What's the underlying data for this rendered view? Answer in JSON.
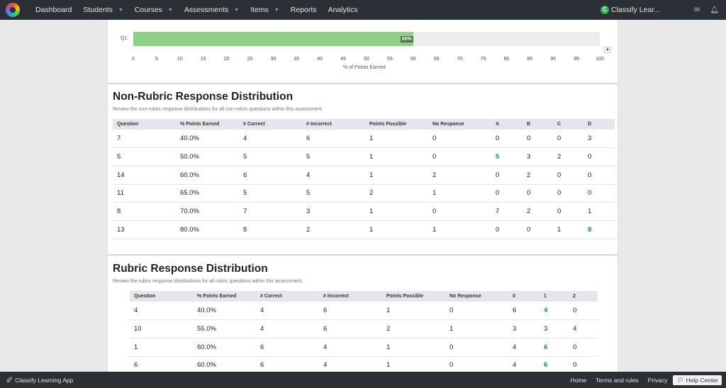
{
  "nav": {
    "items": [
      {
        "label": "Dashboard",
        "dropdown": false
      },
      {
        "label": "Students",
        "dropdown": true
      },
      {
        "label": "Courses",
        "dropdown": true
      },
      {
        "label": "Assessments",
        "dropdown": true
      },
      {
        "label": "Items",
        "dropdown": true
      },
      {
        "label": "Reports",
        "dropdown": false
      },
      {
        "label": "Analytics",
        "dropdown": false
      }
    ],
    "user_initial": "C",
    "user_name": "Classify Lear...",
    "icons": [
      "mail-icon",
      "bell-icon"
    ]
  },
  "chart_data": {
    "type": "bar",
    "orientation": "horizontal",
    "categories": [
      "Q1"
    ],
    "values": [
      60
    ],
    "data_labels": [
      "60%"
    ],
    "xlabel": "% of Points Earned",
    "xlim": [
      0,
      100
    ],
    "x_ticks": [
      "0",
      "5",
      "10",
      "15",
      "20",
      "25",
      "30",
      "35",
      "40",
      "45",
      "50",
      "55",
      "60",
      "65",
      "70",
      "75",
      "80",
      "85",
      "90",
      "95",
      "100"
    ],
    "colors": {
      "bar": "#8fcf88",
      "track": "#ededed"
    }
  },
  "non_rubric": {
    "title": "Non-Rubric Response Distribution",
    "description": "Review the non-rubric response distributions for all non-rubric questions within this assessment.",
    "columns": [
      "Question",
      "% Points Earned",
      "# Correct",
      "# Incorrect",
      "Points Possible",
      "No Response",
      "A",
      "B",
      "C",
      "D"
    ],
    "rows": [
      [
        "7",
        "40.0%",
        "4",
        "6",
        "1",
        "0",
        "0",
        "0",
        "0",
        "3"
      ],
      [
        "5",
        "50.0%",
        "5",
        "5",
        "1",
        "0",
        "5",
        "3",
        "2",
        "0"
      ],
      [
        "14",
        "60.0%",
        "6",
        "4",
        "1",
        "2",
        "0",
        "2",
        "0",
        "0"
      ],
      [
        "11",
        "65.0%",
        "5",
        "5",
        "2",
        "1",
        "0",
        "0",
        "0",
        "0"
      ],
      [
        "8",
        "70.0%",
        "7",
        "3",
        "1",
        "0",
        "7",
        "2",
        "0",
        "1"
      ],
      [
        "13",
        "80.0%",
        "8",
        "2",
        "1",
        "1",
        "0",
        "0",
        "1",
        "8"
      ]
    ],
    "highlight": [
      [
        1,
        6
      ],
      [
        4,
        6
      ],
      [
        5,
        9
      ]
    ]
  },
  "rubric": {
    "title": "Rubric Response Distribution",
    "description": "Review the rubric response distributions for all rubric questions within this assessment.",
    "columns": [
      "Question",
      "% Points Earned",
      "# Correct",
      "# Incorrect",
      "Points Possible",
      "No Response",
      "0",
      "1",
      "2"
    ],
    "rows": [
      [
        "4",
        "40.0%",
        "4",
        "6",
        "1",
        "0",
        "6",
        "4",
        "0"
      ],
      [
        "10",
        "55.0%",
        "4",
        "6",
        "2",
        "1",
        "3",
        "3",
        "4"
      ],
      [
        "1",
        "60.0%",
        "6",
        "4",
        "1",
        "0",
        "4",
        "6",
        "0"
      ],
      [
        "6",
        "60.0%",
        "6",
        "4",
        "1",
        "0",
        "4",
        "6",
        "0"
      ]
    ],
    "highlight": [
      [
        0,
        7
      ],
      [
        1,
        8
      ],
      [
        2,
        7
      ],
      [
        3,
        7
      ]
    ]
  },
  "footer": {
    "app_name": "Classify Learning App",
    "links": [
      "Home",
      "Terms and rules",
      "Privacy"
    ],
    "help_label": "Help Center"
  },
  "colors": {
    "navbar": "#2b2f36",
    "highlight_green": "#2e8b34",
    "header_bg": "#e3e7ec"
  }
}
